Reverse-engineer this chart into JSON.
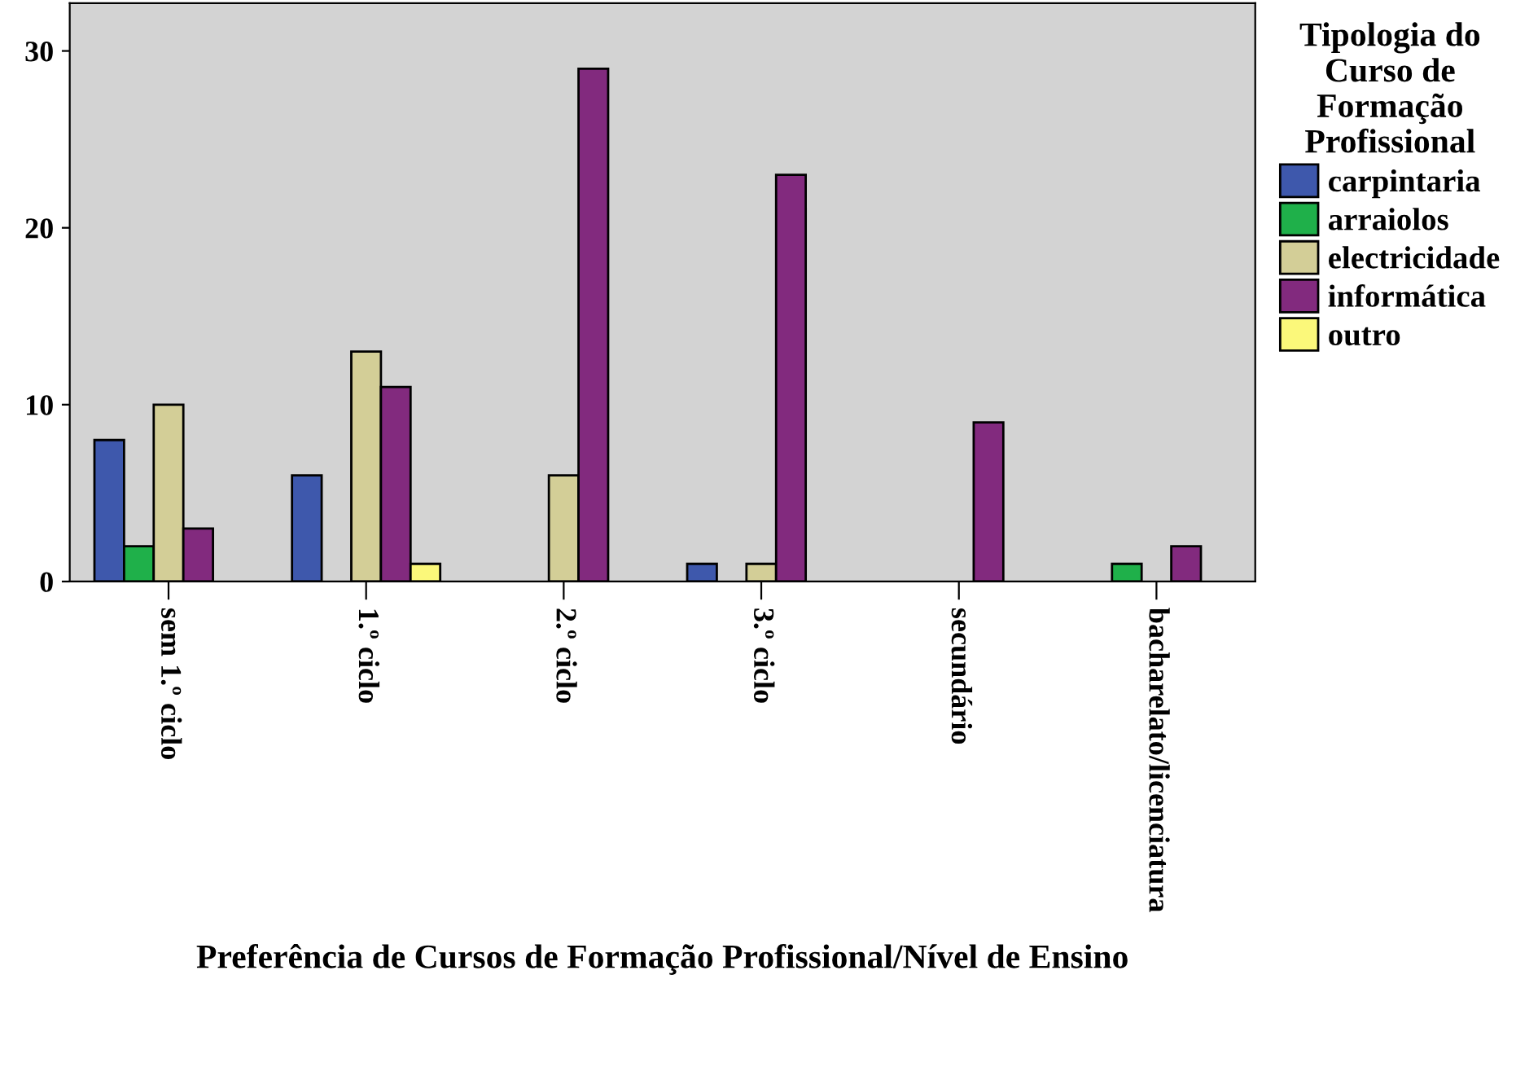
{
  "chart_data": {
    "type": "bar",
    "xlabel": "Preferência de Cursos de Formação Profissional/Nível de Ensino",
    "legend_title": "Tipologia do\nCurso de\nFormação\nProfissional",
    "categories": [
      "sem 1.º ciclo",
      "1.º ciclo",
      "2.º ciclo",
      "3.º ciclo",
      "secundário",
      "bacharelato/licenciatura"
    ],
    "series": [
      {
        "name": "carpintaria",
        "color": "#3e58ac",
        "values": [
          8,
          6,
          0,
          1,
          0,
          0
        ]
      },
      {
        "name": "arraiolos",
        "color": "#1fb04a",
        "values": [
          2,
          0,
          0,
          0,
          0,
          1
        ]
      },
      {
        "name": "electricidade",
        "color": "#d3ce97",
        "values": [
          10,
          13,
          6,
          1,
          0,
          0
        ]
      },
      {
        "name": "informática",
        "color": "#822a7e",
        "values": [
          3,
          11,
          29,
          23,
          9,
          2
        ]
      },
      {
        "name": "outro",
        "color": "#fbf87a",
        "values": [
          0,
          1,
          0,
          0,
          0,
          0
        ]
      }
    ],
    "ylim": [
      0,
      32.7
    ],
    "yticks": [
      0,
      10,
      20,
      30
    ],
    "grid": false,
    "legend": "right"
  }
}
